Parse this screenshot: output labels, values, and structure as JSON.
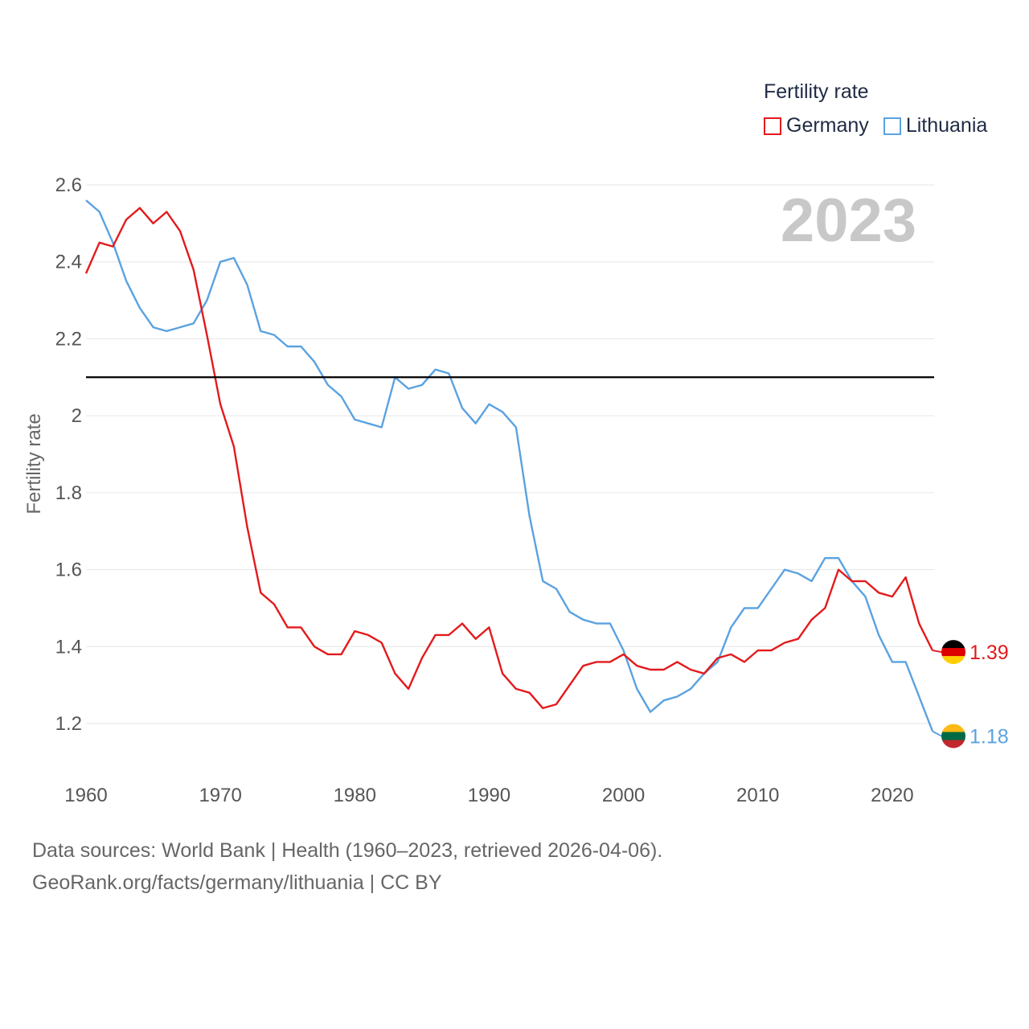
{
  "legend": {
    "title": "Fertility rate",
    "items": [
      {
        "name": "Germany",
        "color": "#e31a1c"
      },
      {
        "name": "Lithuania",
        "color": "#5aa2e0"
      }
    ]
  },
  "year_label": "2023",
  "source": {
    "line1": "Data sources: World Bank | Health (1960–2023, retrieved 2026-04-06).",
    "line2": "GeoRank.org/facts/germany/lithuania | CC BY"
  },
  "chart_data": {
    "type": "line",
    "title": "Fertility rate",
    "xlabel": "",
    "ylabel": "Fertility rate",
    "xlim": [
      1960,
      2023
    ],
    "ylim": [
      1.1,
      2.6
    ],
    "xticks": [
      1960,
      1970,
      1980,
      1990,
      2000,
      2010,
      2020
    ],
    "yticks": [
      1.2,
      1.4,
      1.6,
      1.8,
      2.0,
      2.2,
      2.4,
      2.6
    ],
    "ytick_labels": [
      "1.2",
      "1.4",
      "1.6",
      "1.8",
      "2",
      "2.2",
      "2.4",
      "2.6"
    ],
    "reference_line": {
      "y": 2.1,
      "color": "#000000"
    },
    "x": [
      1960,
      1961,
      1962,
      1963,
      1964,
      1965,
      1966,
      1967,
      1968,
      1969,
      1970,
      1971,
      1972,
      1973,
      1974,
      1975,
      1976,
      1977,
      1978,
      1979,
      1980,
      1981,
      1982,
      1983,
      1984,
      1985,
      1986,
      1987,
      1988,
      1989,
      1990,
      1991,
      1992,
      1993,
      1994,
      1995,
      1996,
      1997,
      1998,
      1999,
      2000,
      2001,
      2002,
      2003,
      2004,
      2005,
      2006,
      2007,
      2008,
      2009,
      2010,
      2011,
      2012,
      2013,
      2014,
      2015,
      2016,
      2017,
      2018,
      2019,
      2020,
      2021,
      2022,
      2023
    ],
    "series": [
      {
        "name": "Germany",
        "color": "#e31a1c",
        "end_label": "1.39",
        "values": [
          2.37,
          2.45,
          2.44,
          2.51,
          2.54,
          2.5,
          2.53,
          2.48,
          2.38,
          2.21,
          2.03,
          1.92,
          1.71,
          1.54,
          1.51,
          1.45,
          1.45,
          1.4,
          1.38,
          1.38,
          1.44,
          1.43,
          1.41,
          1.33,
          1.29,
          1.37,
          1.43,
          1.43,
          1.46,
          1.42,
          1.45,
          1.33,
          1.29,
          1.28,
          1.24,
          1.25,
          1.3,
          1.35,
          1.36,
          1.36,
          1.38,
          1.35,
          1.34,
          1.34,
          1.36,
          1.34,
          1.33,
          1.37,
          1.38,
          1.36,
          1.39,
          1.39,
          1.41,
          1.42,
          1.47,
          1.5,
          1.6,
          1.57,
          1.57,
          1.54,
          1.53,
          1.58,
          1.46,
          1.39
        ]
      },
      {
        "name": "Lithuania",
        "color": "#5aa2e0",
        "end_label": "1.18",
        "values": [
          2.56,
          2.53,
          2.45,
          2.35,
          2.28,
          2.23,
          2.22,
          2.23,
          2.24,
          2.3,
          2.4,
          2.41,
          2.34,
          2.22,
          2.21,
          2.18,
          2.18,
          2.14,
          2.08,
          2.05,
          1.99,
          1.98,
          1.97,
          2.1,
          2.07,
          2.08,
          2.12,
          2.11,
          2.02,
          1.98,
          2.03,
          2.01,
          1.97,
          1.74,
          1.57,
          1.55,
          1.49,
          1.47,
          1.46,
          1.46,
          1.39,
          1.29,
          1.23,
          1.26,
          1.27,
          1.29,
          1.33,
          1.36,
          1.45,
          1.5,
          1.5,
          1.55,
          1.6,
          1.59,
          1.57,
          1.63,
          1.63,
          1.57,
          1.53,
          1.43,
          1.36,
          1.36,
          1.27,
          1.18
        ]
      }
    ]
  }
}
